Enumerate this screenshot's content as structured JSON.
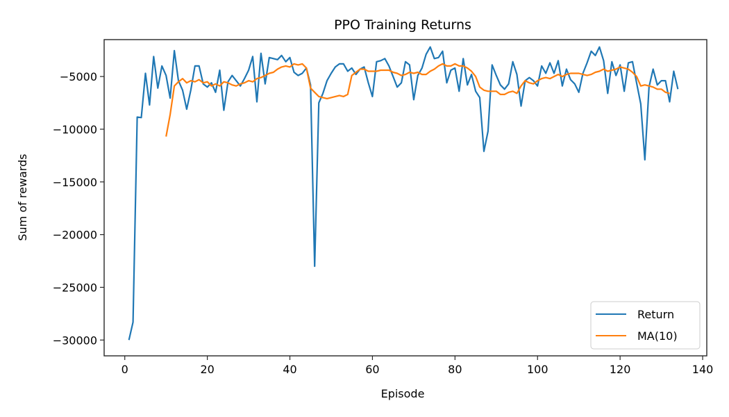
{
  "chart_data": {
    "type": "line",
    "title": "PPO Training Returns",
    "xlabel": "Episode",
    "ylabel": "Sum of rewards",
    "xlim": [
      -5,
      141
    ],
    "ylim": [
      -31500,
      -1500
    ],
    "x_ticks": [
      0,
      20,
      40,
      60,
      80,
      100,
      120,
      140
    ],
    "y_ticks": [
      -30000,
      -25000,
      -20000,
      -15000,
      -10000,
      -5000
    ],
    "y_tick_labels": [
      "−30000",
      "−25000",
      "−20000",
      "−15000",
      "−10000",
      "−5000"
    ],
    "grid": false,
    "legend_position": "lower right",
    "legend": [
      "Return",
      "MA(10)"
    ],
    "series": [
      {
        "name": "Return",
        "color": "#1f77b4",
        "x_start": 1,
        "values": [
          -30000,
          -28300,
          -8850,
          -8900,
          -4700,
          -7700,
          -3100,
          -6100,
          -4000,
          -4900,
          -7050,
          -2550,
          -5400,
          -6300,
          -8100,
          -6300,
          -4000,
          -4000,
          -5700,
          -6000,
          -5600,
          -6500,
          -4400,
          -8200,
          -5500,
          -4900,
          -5400,
          -5900,
          -5200,
          -4400,
          -3100,
          -7400,
          -2800,
          -5700,
          -3200,
          -3300,
          -3400,
          -3000,
          -3600,
          -3200,
          -4600,
          -4900,
          -4700,
          -4200,
          -5800,
          -23000,
          -7500,
          -6600,
          -5400,
          -4700,
          -4100,
          -3800,
          -3800,
          -4500,
          -4200,
          -4800,
          -4300,
          -4100,
          -5600,
          -6900,
          -3600,
          -3500,
          -3300,
          -4000,
          -5000,
          -6000,
          -5600,
          -3600,
          -3900,
          -7200,
          -4900,
          -4200,
          -2900,
          -2200,
          -3300,
          -3200,
          -2600,
          -5600,
          -4400,
          -4200,
          -6400,
          -3300,
          -5800,
          -4800,
          -6400,
          -7000,
          -12100,
          -10200,
          -3900,
          -4900,
          -5800,
          -6200,
          -5700,
          -3600,
          -4800,
          -7800,
          -5400,
          -5100,
          -5400,
          -5900,
          -4000,
          -4700,
          -3700,
          -4700,
          -3500,
          -5900,
          -4300,
          -5300,
          -5700,
          -6500,
          -4700,
          -3700,
          -2600,
          -3000,
          -2200,
          -3500,
          -6600,
          -3600,
          -4900,
          -3900,
          -6400,
          -3700,
          -3600,
          -5600,
          -7600,
          -12900,
          -6000,
          -4300,
          -5800,
          -5400,
          -5400,
          -7400,
          -4500,
          -6200
        ]
      },
      {
        "name": "MA(10)",
        "color": "#ff7f0e",
        "x_start": 10,
        "values": [
          -10700,
          -8600,
          -5900,
          -5500,
          -5200,
          -5600,
          -5400,
          -5500,
          -5300,
          -5600,
          -5500,
          -5900,
          -5700,
          -5900,
          -5500,
          -5600,
          -5800,
          -5900,
          -5700,
          -5600,
          -5400,
          -5500,
          -5200,
          -5100,
          -4900,
          -4700,
          -4600,
          -4300,
          -4100,
          -4000,
          -4100,
          -3800,
          -3900,
          -3800,
          -4200,
          -6100,
          -6500,
          -6900,
          -7000,
          -7100,
          -7000,
          -6900,
          -6800,
          -6900,
          -6700,
          -4900,
          -4600,
          -4300,
          -4300,
          -4500,
          -4500,
          -4500,
          -4400,
          -4400,
          -4400,
          -4600,
          -4700,
          -4900,
          -4800,
          -4600,
          -4700,
          -4600,
          -4800,
          -4800,
          -4500,
          -4300,
          -4000,
          -3800,
          -4000,
          -4000,
          -3800,
          -4000,
          -4000,
          -4200,
          -4500,
          -5000,
          -6000,
          -6300,
          -6400,
          -6400,
          -6400,
          -6700,
          -6700,
          -6500,
          -6400,
          -6600,
          -5900,
          -5400,
          -5600,
          -5700,
          -5400,
          -5200,
          -5100,
          -5200,
          -5000,
          -4800,
          -5000,
          -4800,
          -4700,
          -4700,
          -4700,
          -4800,
          -4900,
          -4800,
          -4600,
          -4500,
          -4300,
          -4500,
          -4400,
          -4300,
          -4100,
          -4200,
          -4300,
          -4600,
          -5000,
          -5900,
          -5800,
          -5900,
          -6000,
          -6200,
          -6200,
          -6500,
          -6600
        ]
      }
    ]
  }
}
